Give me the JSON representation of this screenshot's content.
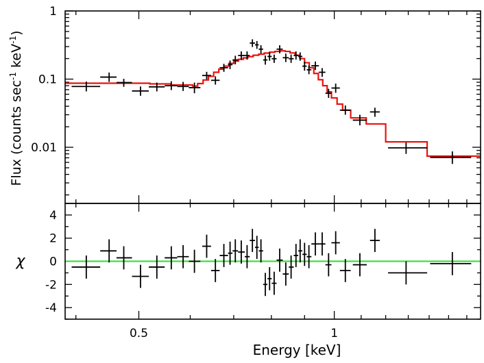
{
  "chart_data": [
    {
      "type": "step-spectrum",
      "panel": "top",
      "ylabel": "Flux (counts sec",
      "ylabel_sup1": "-1",
      "ylabel_mid": " keV",
      "ylabel_sup2": "-1",
      "ylabel_end": ")",
      "yscale": "log",
      "xscale": "log",
      "xlim": [
        0.385,
        1.68
      ],
      "ylim": [
        0.0015,
        1.0
      ],
      "ytick_labels": [
        "1",
        "0.1",
        "0.01"
      ],
      "yticks": [
        1.0,
        0.1,
        0.01
      ],
      "data_points": [
        {
          "x": 0.415,
          "xlo": 0.394,
          "xhi": 0.436,
          "y": 0.078,
          "ylo": 0.066,
          "yhi": 0.092
        },
        {
          "x": 0.45,
          "xlo": 0.436,
          "xhi": 0.462,
          "y": 0.107,
          "ylo": 0.091,
          "yhi": 0.125
        },
        {
          "x": 0.474,
          "xlo": 0.462,
          "xhi": 0.488,
          "y": 0.089,
          "ylo": 0.077,
          "yhi": 0.101
        },
        {
          "x": 0.503,
          "xlo": 0.488,
          "xhi": 0.518,
          "y": 0.067,
          "ylo": 0.057,
          "yhi": 0.078
        },
        {
          "x": 0.533,
          "xlo": 0.518,
          "xhi": 0.548,
          "y": 0.077,
          "ylo": 0.066,
          "yhi": 0.089
        },
        {
          "x": 0.561,
          "xlo": 0.548,
          "xhi": 0.573,
          "y": 0.08,
          "ylo": 0.069,
          "yhi": 0.093
        },
        {
          "x": 0.585,
          "xlo": 0.573,
          "xhi": 0.597,
          "y": 0.078,
          "ylo": 0.067,
          "yhi": 0.091
        },
        {
          "x": 0.609,
          "xlo": 0.597,
          "xhi": 0.622,
          "y": 0.075,
          "ylo": 0.062,
          "yhi": 0.089
        },
        {
          "x": 0.636,
          "xlo": 0.626,
          "xhi": 0.646,
          "y": 0.113,
          "ylo": 0.099,
          "yhi": 0.128
        },
        {
          "x": 0.656,
          "xlo": 0.646,
          "xhi": 0.666,
          "y": 0.096,
          "ylo": 0.083,
          "yhi": 0.11
        },
        {
          "x": 0.676,
          "xlo": 0.666,
          "xhi": 0.686,
          "y": 0.147,
          "ylo": 0.128,
          "yhi": 0.168
        },
        {
          "x": 0.691,
          "xlo": 0.686,
          "xhi": 0.697,
          "y": 0.163,
          "ylo": 0.14,
          "yhi": 0.187
        },
        {
          "x": 0.704,
          "xlo": 0.697,
          "xhi": 0.711,
          "y": 0.191,
          "ylo": 0.165,
          "yhi": 0.22
        },
        {
          "x": 0.719,
          "xlo": 0.711,
          "xhi": 0.728,
          "y": 0.222,
          "ylo": 0.193,
          "yhi": 0.255
        },
        {
          "x": 0.734,
          "xlo": 0.728,
          "xhi": 0.741,
          "y": 0.222,
          "ylo": 0.193,
          "yhi": 0.255
        },
        {
          "x": 0.748,
          "xlo": 0.741,
          "xhi": 0.755,
          "y": 0.338,
          "ylo": 0.296,
          "yhi": 0.384
        },
        {
          "x": 0.76,
          "xlo": 0.755,
          "xhi": 0.765,
          "y": 0.318,
          "ylo": 0.278,
          "yhi": 0.362
        },
        {
          "x": 0.771,
          "xlo": 0.765,
          "xhi": 0.777,
          "y": 0.275,
          "ylo": 0.238,
          "yhi": 0.314
        },
        {
          "x": 0.783,
          "xlo": 0.777,
          "xhi": 0.789,
          "y": 0.191,
          "ylo": 0.163,
          "yhi": 0.222
        },
        {
          "x": 0.795,
          "xlo": 0.789,
          "xhi": 0.801,
          "y": 0.215,
          "ylo": 0.186,
          "yhi": 0.247
        },
        {
          "x": 0.808,
          "xlo": 0.801,
          "xhi": 0.815,
          "y": 0.199,
          "ylo": 0.173,
          "yhi": 0.229
        },
        {
          "x": 0.824,
          "xlo": 0.815,
          "xhi": 0.833,
          "y": 0.275,
          "ylo": 0.239,
          "yhi": 0.314
        },
        {
          "x": 0.842,
          "xlo": 0.833,
          "xhi": 0.851,
          "y": 0.206,
          "ylo": 0.178,
          "yhi": 0.237
        },
        {
          "x": 0.858,
          "xlo": 0.851,
          "xhi": 0.866,
          "y": 0.199,
          "ylo": 0.173,
          "yhi": 0.229
        },
        {
          "x": 0.873,
          "xlo": 0.866,
          "xhi": 0.88,
          "y": 0.222,
          "ylo": 0.193,
          "yhi": 0.255
        },
        {
          "x": 0.886,
          "xlo": 0.88,
          "xhi": 0.893,
          "y": 0.215,
          "ylo": 0.186,
          "yhi": 0.247
        },
        {
          "x": 0.9,
          "xlo": 0.893,
          "xhi": 0.907,
          "y": 0.155,
          "ylo": 0.133,
          "yhi": 0.18
        },
        {
          "x": 0.914,
          "xlo": 0.907,
          "xhi": 0.922,
          "y": 0.137,
          "ylo": 0.118,
          "yhi": 0.158
        },
        {
          "x": 0.935,
          "xlo": 0.922,
          "xhi": 0.947,
          "y": 0.157,
          "ylo": 0.136,
          "yhi": 0.181
        },
        {
          "x": 0.958,
          "xlo": 0.947,
          "xhi": 0.969,
          "y": 0.126,
          "ylo": 0.108,
          "yhi": 0.145
        },
        {
          "x": 0.98,
          "xlo": 0.969,
          "xhi": 0.99,
          "y": 0.062,
          "ylo": 0.053,
          "yhi": 0.072
        },
        {
          "x": 1.005,
          "xlo": 0.99,
          "xhi": 1.02,
          "y": 0.074,
          "ylo": 0.063,
          "yhi": 0.086
        },
        {
          "x": 1.04,
          "xlo": 1.02,
          "xhi": 1.06,
          "y": 0.035,
          "ylo": 0.03,
          "yhi": 0.041
        },
        {
          "x": 1.095,
          "xlo": 1.068,
          "xhi": 1.122,
          "y": 0.025,
          "ylo": 0.021,
          "yhi": 0.03
        },
        {
          "x": 1.155,
          "xlo": 1.135,
          "xhi": 1.175,
          "y": 0.033,
          "ylo": 0.028,
          "yhi": 0.038
        },
        {
          "x": 1.29,
          "xlo": 1.21,
          "xhi": 1.39,
          "y": 0.0098,
          "ylo": 0.008,
          "yhi": 0.0117
        },
        {
          "x": 1.52,
          "xlo": 1.405,
          "xhi": 1.625,
          "y": 0.0071,
          "ylo": 0.0057,
          "yhi": 0.0087
        }
      ],
      "model_steps": [
        {
          "x0": 0.385,
          "y": 0.087
        },
        {
          "x0": 0.52,
          "y": 0.085
        },
        {
          "x0": 0.56,
          "y": 0.082
        },
        {
          "x0": 0.605,
          "y": 0.079
        },
        {
          "x0": 0.616,
          "y": 0.086
        },
        {
          "x0": 0.628,
          "y": 0.097
        },
        {
          "x0": 0.64,
          "y": 0.11
        },
        {
          "x0": 0.652,
          "y": 0.126
        },
        {
          "x0": 0.664,
          "y": 0.14
        },
        {
          "x0": 0.676,
          "y": 0.155
        },
        {
          "x0": 0.688,
          "y": 0.17
        },
        {
          "x0": 0.7,
          "y": 0.184
        },
        {
          "x0": 0.712,
          "y": 0.195
        },
        {
          "x0": 0.724,
          "y": 0.205
        },
        {
          "x0": 0.736,
          "y": 0.214
        },
        {
          "x0": 0.75,
          "y": 0.224
        },
        {
          "x0": 0.765,
          "y": 0.232
        },
        {
          "x0": 0.78,
          "y": 0.241
        },
        {
          "x0": 0.795,
          "y": 0.248
        },
        {
          "x0": 0.81,
          "y": 0.255
        },
        {
          "x0": 0.825,
          "y": 0.26
        },
        {
          "x0": 0.84,
          "y": 0.255
        },
        {
          "x0": 0.855,
          "y": 0.242
        },
        {
          "x0": 0.87,
          "y": 0.224
        },
        {
          "x0": 0.885,
          "y": 0.2
        },
        {
          "x0": 0.9,
          "y": 0.174
        },
        {
          "x0": 0.915,
          "y": 0.147
        },
        {
          "x0": 0.93,
          "y": 0.121
        },
        {
          "x0": 0.945,
          "y": 0.098
        },
        {
          "x0": 0.96,
          "y": 0.08
        },
        {
          "x0": 0.975,
          "y": 0.065
        },
        {
          "x0": 0.99,
          "y": 0.053
        },
        {
          "x0": 1.01,
          "y": 0.043
        },
        {
          "x0": 1.03,
          "y": 0.035
        },
        {
          "x0": 1.06,
          "y": 0.027
        },
        {
          "x0": 1.12,
          "y": 0.022
        },
        {
          "x0": 1.2,
          "y": 0.012
        },
        {
          "x0": 1.39,
          "y": 0.0074
        },
        {
          "x0": 1.68,
          "y": 0.0074
        }
      ],
      "model_color": "#e8130f"
    },
    {
      "type": "residuals",
      "panel": "bottom",
      "ylabel": "χ",
      "xlabel": "Energy [keV]",
      "xscale": "log",
      "xlim": [
        0.385,
        1.68
      ],
      "ylim": [
        -5,
        5
      ],
      "yticks": [
        4,
        2,
        0,
        -2,
        -4
      ],
      "ytick_labels": [
        "4",
        "2",
        "0",
        "-2",
        "-4"
      ],
      "xticks": [
        0.5,
        1
      ],
      "xtick_labels": [
        "0.5",
        "1"
      ],
      "zero_line_color": "#3fe03f",
      "residuals": [
        {
          "x": 0.415,
          "xlo": 0.394,
          "xhi": 0.436,
          "y": -0.5,
          "err": 1.0
        },
        {
          "x": 0.45,
          "xlo": 0.436,
          "xhi": 0.462,
          "y": 0.9,
          "err": 1.0
        },
        {
          "x": 0.474,
          "xlo": 0.462,
          "xhi": 0.488,
          "y": 0.3,
          "err": 1.0
        },
        {
          "x": 0.503,
          "xlo": 0.488,
          "xhi": 0.518,
          "y": -1.3,
          "err": 1.0
        },
        {
          "x": 0.533,
          "xlo": 0.518,
          "xhi": 0.548,
          "y": -0.5,
          "err": 1.0
        },
        {
          "x": 0.561,
          "xlo": 0.548,
          "xhi": 0.573,
          "y": 0.3,
          "err": 1.0
        },
        {
          "x": 0.585,
          "xlo": 0.573,
          "xhi": 0.597,
          "y": 0.4,
          "err": 1.0
        },
        {
          "x": 0.609,
          "xlo": 0.597,
          "xhi": 0.622,
          "y": 0.0,
          "err": 1.0
        },
        {
          "x": 0.636,
          "xlo": 0.626,
          "xhi": 0.646,
          "y": 1.3,
          "err": 1.0
        },
        {
          "x": 0.656,
          "xlo": 0.646,
          "xhi": 0.666,
          "y": -0.8,
          "err": 1.0
        },
        {
          "x": 0.676,
          "xlo": 0.666,
          "xhi": 0.686,
          "y": 0.5,
          "err": 1.0
        },
        {
          "x": 0.691,
          "xlo": 0.686,
          "xhi": 0.697,
          "y": 0.7,
          "err": 1.0
        },
        {
          "x": 0.704,
          "xlo": 0.697,
          "xhi": 0.711,
          "y": 0.9,
          "err": 1.0
        },
        {
          "x": 0.719,
          "xlo": 0.711,
          "xhi": 0.728,
          "y": 0.8,
          "err": 1.0
        },
        {
          "x": 0.734,
          "xlo": 0.728,
          "xhi": 0.741,
          "y": 0.4,
          "err": 1.0
        },
        {
          "x": 0.748,
          "xlo": 0.741,
          "xhi": 0.755,
          "y": 1.8,
          "err": 1.0
        },
        {
          "x": 0.76,
          "xlo": 0.755,
          "xhi": 0.765,
          "y": 1.2,
          "err": 1.0
        },
        {
          "x": 0.771,
          "xlo": 0.765,
          "xhi": 0.777,
          "y": 0.9,
          "err": 1.0
        },
        {
          "x": 0.783,
          "xlo": 0.777,
          "xhi": 0.789,
          "y": -2.0,
          "err": 1.0
        },
        {
          "x": 0.795,
          "xlo": 0.789,
          "xhi": 0.801,
          "y": -1.5,
          "err": 1.0
        },
        {
          "x": 0.808,
          "xlo": 0.801,
          "xhi": 0.815,
          "y": -1.9,
          "err": 1.0
        },
        {
          "x": 0.824,
          "xlo": 0.815,
          "xhi": 0.833,
          "y": 0.1,
          "err": 1.0
        },
        {
          "x": 0.842,
          "xlo": 0.833,
          "xhi": 0.851,
          "y": -1.1,
          "err": 1.0
        },
        {
          "x": 0.858,
          "xlo": 0.851,
          "xhi": 0.866,
          "y": -0.5,
          "err": 1.0
        },
        {
          "x": 0.873,
          "xlo": 0.866,
          "xhi": 0.88,
          "y": 0.5,
          "err": 1.0
        },
        {
          "x": 0.886,
          "xlo": 0.88,
          "xhi": 0.893,
          "y": 0.9,
          "err": 1.0
        },
        {
          "x": 0.9,
          "xlo": 0.893,
          "xhi": 0.907,
          "y": 0.6,
          "err": 1.0
        },
        {
          "x": 0.914,
          "xlo": 0.907,
          "xhi": 0.922,
          "y": 0.4,
          "err": 1.0
        },
        {
          "x": 0.935,
          "xlo": 0.922,
          "xhi": 0.947,
          "y": 1.5,
          "err": 1.0
        },
        {
          "x": 0.958,
          "xlo": 0.947,
          "xhi": 0.969,
          "y": 1.5,
          "err": 1.0
        },
        {
          "x": 0.98,
          "xlo": 0.969,
          "xhi": 0.99,
          "y": -0.3,
          "err": 1.0
        },
        {
          "x": 1.005,
          "xlo": 0.99,
          "xhi": 1.02,
          "y": 1.6,
          "err": 1.0
        },
        {
          "x": 1.04,
          "xlo": 1.02,
          "xhi": 1.06,
          "y": -0.8,
          "err": 1.0
        },
        {
          "x": 1.095,
          "xlo": 1.068,
          "xhi": 1.122,
          "y": -0.3,
          "err": 1.0
        },
        {
          "x": 1.155,
          "xlo": 1.135,
          "xhi": 1.175,
          "y": 1.8,
          "err": 1.0
        },
        {
          "x": 1.29,
          "xlo": 1.21,
          "xhi": 1.39,
          "y": -1.0,
          "err": 1.0
        },
        {
          "x": 1.52,
          "xlo": 1.405,
          "xhi": 1.625,
          "y": -0.2,
          "err": 1.0
        }
      ]
    }
  ]
}
